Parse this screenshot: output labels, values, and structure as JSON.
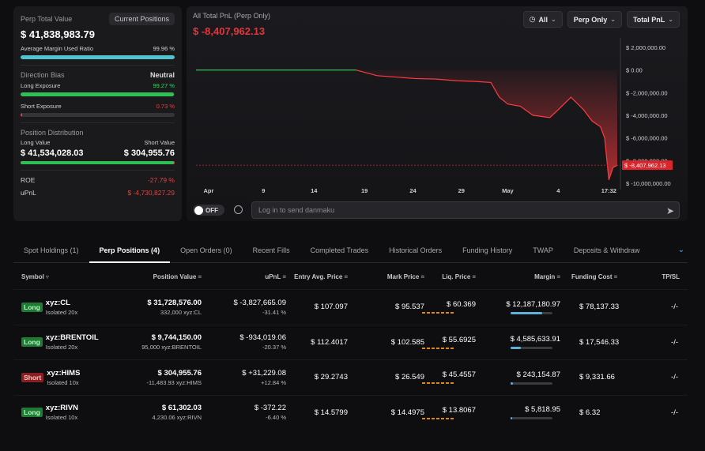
{
  "summary": {
    "perp_total_value_label": "Perp Total Value",
    "current_positions_btn": "Current Positions",
    "perp_total_value": "$ 41,838,983.79",
    "avg_margin_label": "Average Margin Used Ratio",
    "avg_margin_value": "99.96 %",
    "avg_margin_fraction": 0.9996,
    "direction_bias_label": "Direction Bias",
    "direction_bias_value": "Neutral",
    "long_exposure_label": "Long Exposure",
    "long_exposure_value": "99.27 %",
    "long_exposure_fraction": 0.9927,
    "short_exposure_label": "Short Exposure",
    "short_exposure_value": "0.73 %",
    "short_exposure_fraction": 0.0073,
    "position_distribution_label": "Position Distribution",
    "long_value_label": "Long Value",
    "short_value_label": "Short Value",
    "long_value": "$ 41,534,028.03",
    "short_value": "$ 304,955.76",
    "long_value_fraction": 0.9927,
    "roe_label": "ROE",
    "roe_value": "-27.79 %",
    "upnl_label": "uPnL",
    "upnl_value": "$ -4,730,827.29"
  },
  "chart": {
    "title": "All Total PnL (Perp Only)",
    "current_pnl": "$ -8,407,962.13",
    "filters": [
      {
        "label": "All",
        "icon": "clock-icon"
      },
      {
        "label": "Perp Only"
      },
      {
        "label": "Total PnL"
      }
    ],
    "current_tag": "$ -8,407,962.13",
    "toggle_label": "OFF",
    "danmaku_placeholder": "Log in to send danmaku"
  },
  "chart_data": {
    "type": "line",
    "x_ticks": [
      "Apr",
      "9",
      "14",
      "19",
      "24",
      "29",
      "May",
      "4",
      "17:32"
    ],
    "y_ticks": [
      "$ 2,000,000.00",
      "$ 0.00",
      "$ -2,000,000.00",
      "$ -4,000,000.00",
      "$ -6,000,000.00",
      "$ -8,000,000.00",
      "$ -10,000,000.00"
    ],
    "ylim": [
      -10000000,
      2000000
    ],
    "x_range": [
      0,
      100
    ],
    "series": [
      {
        "x": [
          0,
          38,
          43,
          52,
          57,
          62,
          66,
          70,
          72,
          74,
          77,
          80,
          84,
          86,
          89,
          92,
          94,
          96,
          97,
          98,
          99,
          100
        ],
        "y": [
          0,
          0,
          -500000,
          -750000,
          -800000,
          -950000,
          -1000000,
          -1100000,
          -2400000,
          -3000000,
          -3200000,
          -4000000,
          -4200000,
          -3500000,
          -2400000,
          -3500000,
          -4500000,
          -5000000,
          -6000000,
          -9700000,
          -8600000,
          -8407962
        ]
      }
    ]
  },
  "tabs": [
    {
      "label": "Spot Holdings (1)",
      "active": false
    },
    {
      "label": "Perp Positions (4)",
      "active": true
    },
    {
      "label": "Open Orders (0)",
      "active": false
    },
    {
      "label": "Recent Fills",
      "active": false
    },
    {
      "label": "Completed Trades",
      "active": false
    },
    {
      "label": "Historical Orders",
      "active": false
    },
    {
      "label": "Funding History",
      "active": false
    },
    {
      "label": "TWAP",
      "active": false
    },
    {
      "label": "Deposits & Withdraw",
      "active": false
    }
  ],
  "table": {
    "headers": {
      "symbol": "Symbol",
      "position_value": "Position Value",
      "upnl": "uPnL",
      "entry": "Entry Avg. Price",
      "mark": "Mark Price",
      "liq": "Liq. Price",
      "margin": "Margin",
      "funding": "Funding Cost",
      "tpsl": "TP/SL"
    },
    "rows": [
      {
        "side": "Long",
        "symbol": "xyz:CL",
        "mode": "Isolated 20x",
        "value": "$ 31,728,576.00",
        "size": "332,000 xyz:CL",
        "upnl": "$ -3,827,665.09",
        "upnl_pct": "-31.41 %",
        "upnl_sign": "neg",
        "entry": "$ 107.097",
        "mark": "$ 95.537",
        "liq": "$ 60.369",
        "margin": "$ 12,187,180.97",
        "margin_fraction": 0.75,
        "funding": "$ 78,137.33",
        "tpsl": "-/-"
      },
      {
        "side": "Long",
        "symbol": "xyz:BRENTOIL",
        "mode": "Isolated 20x",
        "value": "$ 9,744,150.00",
        "size": "95,000 xyz:BRENTOIL",
        "upnl": "$ -934,019.06",
        "upnl_pct": "-20.37 %",
        "upnl_sign": "neg",
        "entry": "$ 112.4017",
        "mark": "$ 102.585",
        "liq": "$ 55.6925",
        "margin": "$ 4,585,633.91",
        "margin_fraction": 0.25,
        "funding": "$ 17,546.33",
        "tpsl": "-/-"
      },
      {
        "side": "Short",
        "symbol": "xyz:HIMS",
        "mode": "Isolated 10x",
        "value": "$ 304,955.76",
        "size": "-11,483.93 xyz:HIMS",
        "upnl": "$ +31,229.08",
        "upnl_pct": "+12.84 %",
        "upnl_sign": "pos",
        "entry": "$ 29.2743",
        "mark": "$ 26.549",
        "liq": "$ 45.4557",
        "margin": "$ 243,154.87",
        "margin_fraction": 0.05,
        "funding": "$ 9,331.66",
        "tpsl": "-/-"
      },
      {
        "side": "Long",
        "symbol": "xyz:RIVN",
        "mode": "Isolated 10x",
        "value": "$ 61,302.03",
        "size": "4,230.06 xyz:RIVN",
        "upnl": "$ -372.22",
        "upnl_pct": "-6.40 %",
        "upnl_sign": "neg",
        "entry": "$ 14.5799",
        "mark": "$ 14.4975",
        "liq": "$ 13.8067",
        "margin": "$ 5,818.95",
        "margin_fraction": 0.03,
        "funding": "$ 6.32",
        "tpsl": "-/-"
      }
    ]
  },
  "colors": {
    "positive": "#3ccf63",
    "negative": "#e5403f",
    "accent": "#5ab0ff"
  }
}
